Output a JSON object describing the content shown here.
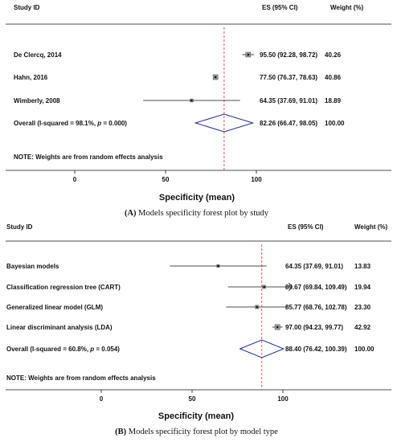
{
  "chart_data": [
    {
      "type": "forest",
      "header": {
        "study": "Study ID",
        "es": "ES (95% CI)",
        "weight": "Weight (%)"
      },
      "studies": [
        {
          "label": "De Clercq, 2014",
          "es": 95.5,
          "lo": 92.28,
          "hi": 98.72,
          "ci_text": "95.50 (92.28, 98.72)",
          "weight": "40.26"
        },
        {
          "label": "Hahn, 2016",
          "es": 77.5,
          "lo": 76.37,
          "hi": 78.63,
          "ci_text": "77.50 (76.37, 78.63)",
          "weight": "40.86"
        },
        {
          "label": "Wimberly, 2008",
          "es": 64.35,
          "lo": 37.69,
          "hi": 91.01,
          "ci_text": "64.35 (37.69, 91.01)",
          "weight": "18.89"
        }
      ],
      "overall": {
        "label_prefix": "Overall  (I-squared = 98.1%, ",
        "p_letter": "p",
        "label_suffix": " = 0.000)",
        "es": 82.26,
        "lo": 66.47,
        "hi": 98.05,
        "ci_text": "82.26 (66.47, 98.05)",
        "weight": "100.00"
      },
      "note": "NOTE: Weights are from random effects analysis",
      "xticks": [
        0,
        50,
        100
      ],
      "xlabel": "Specificity (mean)",
      "caption_letter": "(A)",
      "caption_text": " Models specificity forest plot by study"
    },
    {
      "type": "forest",
      "header": {
        "study": "Study ID",
        "es": "ES (95% CI)",
        "weight": "Weight (%)"
      },
      "studies": [
        {
          "label": "Bayesian models",
          "es": 64.35,
          "lo": 37.69,
          "hi": 91.01,
          "ci_text": "64.35 (37.69, 91.01)",
          "weight": "13.83"
        },
        {
          "label": "Classification regression tree (CART)",
          "es": 89.67,
          "lo": 69.84,
          "hi": 109.49,
          "ci_text": "89.67 (69.84, 109.49)",
          "weight": "19.94"
        },
        {
          "label": "Generalized linear model (GLM)",
          "es": 85.77,
          "lo": 68.76,
          "hi": 102.78,
          "ci_text": "85.77 (68.76, 102.78)",
          "weight": "23.30"
        },
        {
          "label": "Linear discriminant analysis (LDA)",
          "es": 97.0,
          "lo": 94.23,
          "hi": 99.77,
          "ci_text": "97.00 (94.23, 99.77)",
          "weight": "42.92"
        }
      ],
      "overall": {
        "label_prefix": "Overall  (I-squared = 60.8%, ",
        "p_letter": "p",
        "label_suffix": " = 0.054)",
        "es": 88.4,
        "lo": 76.42,
        "hi": 100.39,
        "ci_text": "88.40 (76.42, 100.39)",
        "weight": "100.00"
      },
      "note": "NOTE: Weights are from random effects analysis",
      "xticks": [
        0,
        50,
        100
      ],
      "xlabel": "Specificity (mean)",
      "caption_letter": "(B)",
      "caption_text": " Models specificity forest plot by model type"
    }
  ]
}
